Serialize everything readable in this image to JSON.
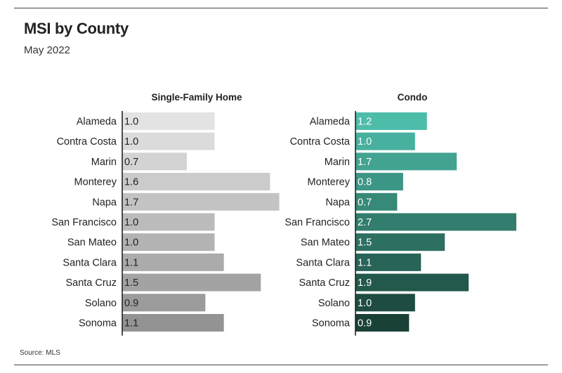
{
  "header": {
    "title": "MSI by County",
    "subtitle": "May 2022"
  },
  "footer": {
    "source": "Source: MLS"
  },
  "chart_data": [
    {
      "type": "bar",
      "orientation": "horizontal",
      "title": "Single-Family Home",
      "categories": [
        "Alameda",
        "Contra Costa",
        "Marin",
        "Monterey",
        "Napa",
        "San Francisco",
        "San Mateo",
        "Santa Clara",
        "Santa Cruz",
        "Solano",
        "Sonoma"
      ],
      "values": [
        1.0,
        1.0,
        0.7,
        1.6,
        1.7,
        1.0,
        1.0,
        1.1,
        1.5,
        0.9,
        1.1
      ],
      "labels": [
        "1.0",
        "1.0",
        "0.7",
        "1.6",
        "1.7",
        "1.0",
        "1.0",
        "1.1",
        "1.5",
        "0.9",
        "1.1"
      ],
      "xlim": [
        0,
        1.7
      ],
      "colors": [
        "#e3e3e3",
        "#dbdbdb",
        "#d3d3d3",
        "#cbcbcb",
        "#c3c3c3",
        "#bbbbbb",
        "#b3b3b3",
        "#ababab",
        "#a3a3a3",
        "#9b9b9b",
        "#939393"
      ]
    },
    {
      "type": "bar",
      "orientation": "horizontal",
      "title": "Condo",
      "categories": [
        "Alameda",
        "Contra Costa",
        "Marin",
        "Monterey",
        "Napa",
        "San Francisco",
        "San Mateo",
        "Santa Clara",
        "Santa Cruz",
        "Solano",
        "Sonoma"
      ],
      "values": [
        1.2,
        1.0,
        1.7,
        0.8,
        0.7,
        2.7,
        1.5,
        1.1,
        1.9,
        1.0,
        0.9
      ],
      "labels": [
        "1.2",
        "1.0",
        "1.7",
        "0.8",
        "0.7",
        "2.7",
        "1.5",
        "1.1",
        "1.9",
        "1.0",
        "0.9"
      ],
      "xlim": [
        0,
        2.7
      ],
      "colors": [
        "#4dbdaa",
        "#47b09e",
        "#42a391",
        "#3c9685",
        "#378978",
        "#327d6d",
        "#2d7062",
        "#286457",
        "#23584c",
        "#1f4c42",
        "#1a4138"
      ]
    }
  ]
}
